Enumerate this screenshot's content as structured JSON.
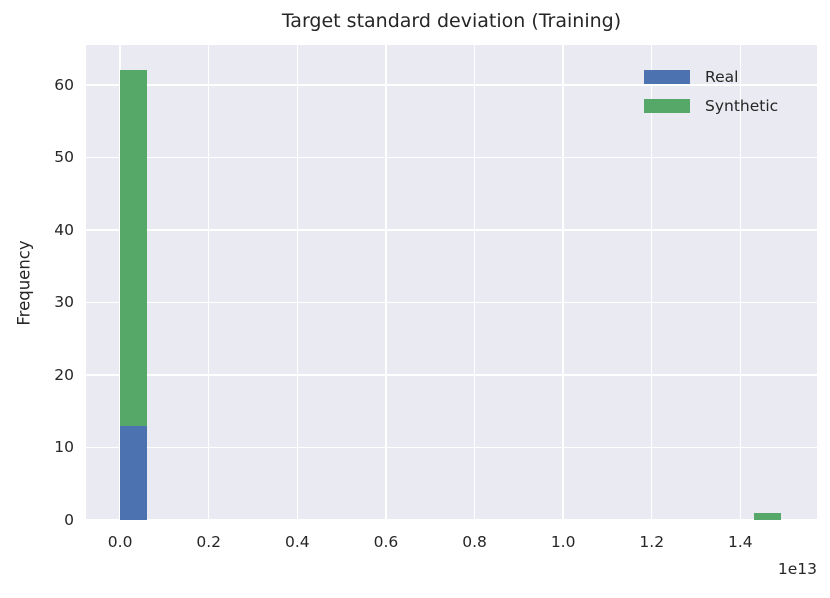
{
  "figure": {
    "title": "Target standard deviation (Training)",
    "ylabel": "Frequency",
    "x_offset_label": "1e13",
    "background_color": "#ffffff",
    "plot_background_color": "#eaeaf2",
    "gridline_color": "#ffffff",
    "text_color": "#262626"
  },
  "legend": {
    "position": "upper right",
    "entries": [
      {
        "label": "Real",
        "color": "#4c72b0"
      },
      {
        "label": "Synthetic",
        "color": "#55a868"
      }
    ]
  },
  "chart_data": {
    "type": "bar",
    "subtype": "stacked histogram",
    "title": "Target standard deviation (Training)",
    "xlabel": "",
    "ylabel": "Frequency",
    "x_unit_multiplier": "1e13",
    "grid": true,
    "xlim": [
      -0.077,
      1.573
    ],
    "ylim": [
      0,
      65.5
    ],
    "xtick_values": [
      0.0,
      0.2,
      0.4,
      0.6,
      0.8,
      1.0,
      1.2,
      1.4
    ],
    "xtick_labels": [
      "0.0",
      "0.2",
      "0.4",
      "0.6",
      "0.8",
      "1.0",
      "1.2",
      "1.4"
    ],
    "ytick_values": [
      0,
      10,
      20,
      30,
      40,
      50,
      60
    ],
    "series": [
      {
        "name": "Real",
        "color": "#4c72b0",
        "counts_by_visible_bin": [
          13,
          0
        ]
      },
      {
        "name": "Synthetic",
        "color": "#55a868",
        "counts_by_visible_bin": [
          49,
          1
        ]
      }
    ],
    "bars": [
      {
        "x_start": 0.0,
        "x_end": 0.061,
        "segments": [
          {
            "series": "Real",
            "from": 0,
            "to": 13
          },
          {
            "series": "Synthetic",
            "from": 13,
            "to": 62
          }
        ]
      },
      {
        "x_start": 1.431,
        "x_end": 1.492,
        "segments": [
          {
            "series": "Synthetic",
            "from": 0,
            "to": 1
          }
        ]
      }
    ],
    "notes": "Histogram bin near 0 stacks Real (13) under Synthetic (49) for a total height of 62; an isolated Synthetic bin of height 1 sits near 1.46e13."
  }
}
